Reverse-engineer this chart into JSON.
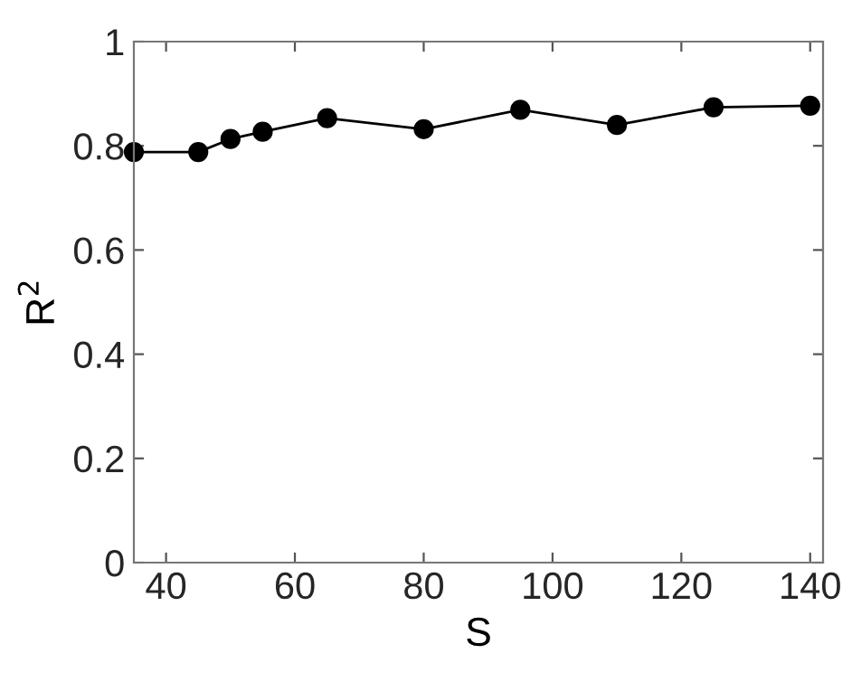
{
  "chart_data": {
    "type": "line",
    "xlabel": "S",
    "ylabel": "R$^{2}$",
    "x": [
      35,
      45,
      50,
      55,
      65,
      80,
      95,
      110,
      125,
      140
    ],
    "series": [
      {
        "color": "#000000",
        "values": [
          0.788,
          0.788,
          0.813,
          0.827,
          0.853,
          0.832,
          0.869,
          0.84,
          0.874,
          0.877
        ]
      }
    ],
    "xlim": [
      35,
      142
    ],
    "ylim": [
      0,
      1
    ],
    "xticks": [
      40,
      60,
      80,
      100,
      120,
      140
    ],
    "yticks": [
      0,
      0.2,
      0.4,
      0.6,
      0.8,
      1
    ],
    "marker": "circle",
    "line_style": "solid",
    "grid": false,
    "legend": false
  }
}
